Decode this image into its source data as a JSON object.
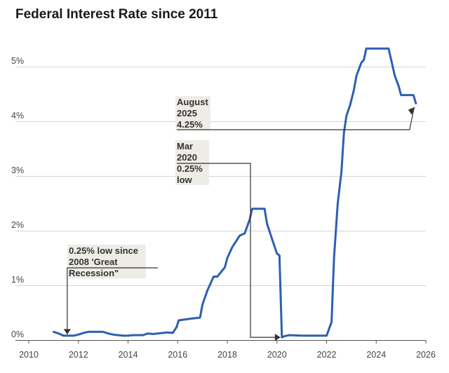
{
  "chart_data": {
    "type": "line",
    "title": "Federal Interest Rate since 2011",
    "xlabel": "",
    "ylabel": "",
    "x_ticks": [
      "2010",
      "2012",
      "2014",
      "2016",
      "2018",
      "2020",
      "2022",
      "2024",
      "2026"
    ],
    "y_ticks": [
      "0%",
      "1%",
      "2%",
      "3%",
      "4%",
      "5%"
    ],
    "xlim": [
      2010,
      2026
    ],
    "ylim": [
      0,
      5
    ],
    "grid": true,
    "series": [
      {
        "color": "#2e5fb0",
        "x": [
          2011.0,
          2011.2,
          2011.4,
          2011.6,
          2011.8,
          2012.0,
          2012.2,
          2012.4,
          2012.6,
          2012.8,
          2013.0,
          2013.2,
          2013.4,
          2013.6,
          2013.8,
          2014.0,
          2014.2,
          2014.4,
          2014.6,
          2014.8,
          2015.0,
          2015.2,
          2015.4,
          2015.6,
          2015.8,
          2015.96,
          2016.04,
          2016.2,
          2016.5,
          2016.9,
          2017.0,
          2017.2,
          2017.45,
          2017.6,
          2017.9,
          2018.0,
          2018.2,
          2018.5,
          2018.7,
          2018.9,
          2019.0,
          2019.2,
          2019.4,
          2019.5,
          2019.6,
          2019.8,
          2020.0,
          2020.1,
          2020.2,
          2020.3,
          2020.5,
          2021.0,
          2021.5,
          2021.8,
          2022.0,
          2022.2,
          2022.3,
          2022.45,
          2022.6,
          2022.7,
          2022.8,
          2022.95,
          2023.1,
          2023.2,
          2023.4,
          2023.5,
          2023.6,
          2024.0,
          2024.5,
          2024.6,
          2024.75,
          2024.9,
          2025.0,
          2025.3,
          2025.5,
          2025.6
        ],
        "y": [
          0.15,
          0.12,
          0.08,
          0.08,
          0.08,
          0.1,
          0.13,
          0.15,
          0.15,
          0.15,
          0.15,
          0.12,
          0.1,
          0.09,
          0.08,
          0.08,
          0.09,
          0.09,
          0.09,
          0.12,
          0.11,
          0.12,
          0.13,
          0.14,
          0.13,
          0.24,
          0.36,
          0.37,
          0.39,
          0.41,
          0.65,
          0.91,
          1.16,
          1.16,
          1.33,
          1.5,
          1.7,
          1.91,
          1.95,
          2.2,
          2.4,
          2.4,
          2.4,
          2.4,
          2.13,
          1.85,
          1.58,
          1.55,
          0.05,
          0.07,
          0.09,
          0.08,
          0.08,
          0.08,
          0.08,
          0.33,
          1.5,
          2.5,
          3.08,
          3.8,
          4.1,
          4.3,
          4.57,
          4.83,
          5.07,
          5.12,
          5.33,
          5.33,
          5.33,
          5.13,
          4.83,
          4.65,
          4.48,
          4.48,
          4.48,
          4.33
        ]
      }
    ],
    "annotations": [
      {
        "lines": [
          "August",
          "2025",
          "4.25%"
        ],
        "x": 2025.6,
        "y": 4.25
      },
      {
        "lines": [
          "Mar",
          "2020",
          "0.25%",
          "low"
        ],
        "x": 2020.2,
        "y": 0.05
      },
      {
        "lines": [
          "0.25% low since",
          "2008 'Great",
          "Recession\""
        ],
        "x": 2011.55,
        "y": 0.08
      }
    ]
  }
}
